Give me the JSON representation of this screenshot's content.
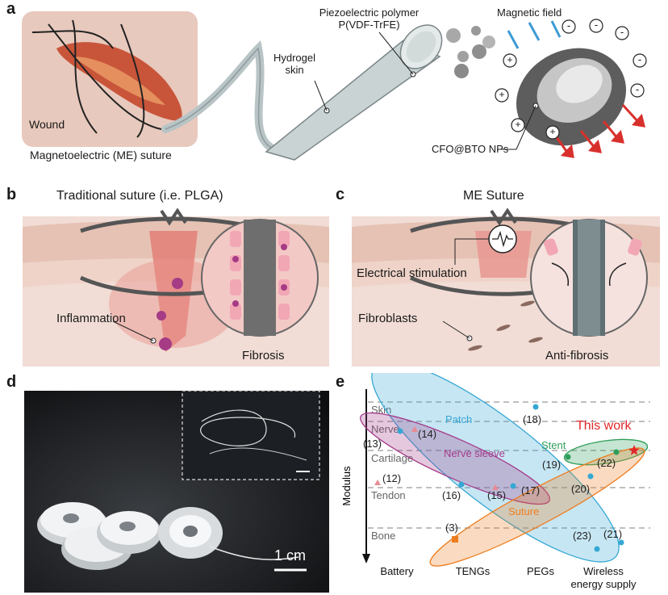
{
  "panel_a": {
    "label": "a",
    "wound": "Wound",
    "me_suture": "Magnetoelectric (ME) suture",
    "hydrogel_skin": "Hydrogel\nskin",
    "piezo_polymer": "Piezoelectric polymer\nP(VDF-TrFE)",
    "magnetic_field": "Magnetic field",
    "nps": "CFO@BTO NPs",
    "neg_sign": "-",
    "pos_sign": "+"
  },
  "panel_b": {
    "label": "b",
    "title": "Traditional suture (i.e. PLGA)",
    "inflammation": "Inflammation",
    "fibrosis": "Fibrosis"
  },
  "panel_c": {
    "label": "c",
    "title": "ME Suture",
    "electrical": "Electrical stimulation",
    "fibroblasts": "Fibroblasts",
    "anti_fibrosis": "Anti-fibrosis"
  },
  "panel_d": {
    "label": "d",
    "scale": "1 cm"
  },
  "panel_e": {
    "label": "e",
    "colors": {
      "patch": "#35a7d3",
      "nerve_sleeve": "#a33a8a",
      "stent": "#2f9e5b",
      "suture": "#ee7d1f",
      "this_work": "#e0282a"
    }
  },
  "chart_data": {
    "type": "scatter",
    "title": "",
    "ylabel": "Modulus",
    "xlabel": "",
    "categories": [
      "Battery",
      "TENGs",
      "PEGs",
      "Wireless\nenergy supply"
    ],
    "y_levels": [
      "Skin",
      "Nerve",
      "Cartilage",
      "Tendon",
      "Bone"
    ],
    "groups": [
      {
        "name": "Patch",
        "color": "#35a7d3"
      },
      {
        "name": "Nerve sleeve",
        "color": "#a33a8a"
      },
      {
        "name": "Stent",
        "color": "#2f9e5b"
      },
      {
        "name": "Suture",
        "color": "#ee7d1f"
      }
    ],
    "points": [
      {
        "label": "(13)",
        "x": "Battery",
        "y": "Nerve"
      },
      {
        "label": "(14)",
        "x": "Battery",
        "y": "Nerve"
      },
      {
        "label": "(12)",
        "x": "Battery",
        "y": "Cartilage"
      },
      {
        "label": "(18)",
        "x": "PEGs",
        "y": "Skin"
      },
      {
        "label": "(16)",
        "x": "TENGs",
        "y": "Tendon"
      },
      {
        "label": "(15)",
        "x": "TENGs",
        "y": "Tendon"
      },
      {
        "label": "(17)",
        "x": "PEGs",
        "y": "Tendon"
      },
      {
        "label": "(19)",
        "x": "PEGs",
        "y": "Cartilage"
      },
      {
        "label": "(20)",
        "x": "Wireless\nenergy supply",
        "y": "Tendon"
      },
      {
        "label": "(22)",
        "x": "Wireless\nenergy supply",
        "y": "Cartilage"
      },
      {
        "label": "(3)",
        "x": "Battery",
        "y": "Bone"
      },
      {
        "label": "(23)",
        "x": "Wireless\nenergy supply",
        "y": "Bone"
      },
      {
        "label": "(21)",
        "x": "Wireless\nenergy supply",
        "y": "Bone"
      }
    ],
    "highlight": {
      "label": "This work",
      "x": "Wireless\nenergy supply",
      "y": "Cartilage"
    }
  }
}
